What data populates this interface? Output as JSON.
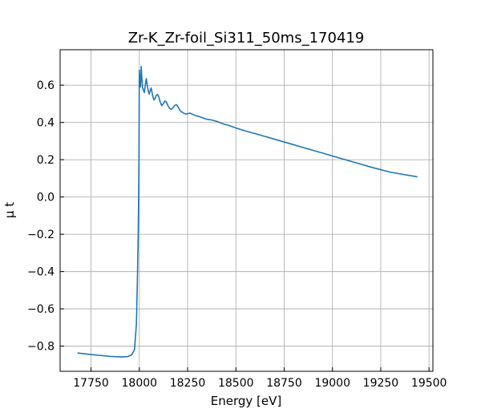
{
  "chart_data": {
    "type": "line",
    "title": "Zr-K_Zr-foil_Si311_50ms_170419",
    "xlabel": "Energy [eV]",
    "ylabel": "μ t",
    "xlim": [
      17590,
      19520
    ],
    "ylim": [
      -0.935,
      0.79
    ],
    "grid": true,
    "legend": "none",
    "x_ticks": [
      {
        "value": 17750,
        "label": "17750"
      },
      {
        "value": 18000,
        "label": "18000"
      },
      {
        "value": 18250,
        "label": "18250"
      },
      {
        "value": 18500,
        "label": "18500"
      },
      {
        "value": 18750,
        "label": "18750"
      },
      {
        "value": 19000,
        "label": "19000"
      },
      {
        "value": 19250,
        "label": "19250"
      },
      {
        "value": 19500,
        "label": "19500"
      }
    ],
    "y_ticks": [
      {
        "value": 0.6,
        "label": "0.6"
      },
      {
        "value": 0.4,
        "label": "0.4"
      },
      {
        "value": 0.2,
        "label": "0.2"
      },
      {
        "value": 0.0,
        "label": "0.0"
      },
      {
        "value": -0.2,
        "label": "−0.2"
      },
      {
        "value": -0.4,
        "label": "−0.4"
      },
      {
        "value": -0.6,
        "label": "−0.6"
      },
      {
        "value": -0.8,
        "label": "−0.8"
      }
    ],
    "series": [
      {
        "color": "#1f77b4",
        "x": [
          17680,
          17750,
          17800,
          17850,
          17900,
          17940,
          17960,
          17975,
          17985,
          17990,
          17994,
          17996,
          17998,
          18000,
          18003,
          18006,
          18010,
          18013,
          18017,
          18021,
          18026,
          18031,
          18036,
          18041,
          18046,
          18051,
          18056,
          18061,
          18066,
          18071,
          18076,
          18082,
          18088,
          18094,
          18100,
          18108,
          18116,
          18124,
          18132,
          18140,
          18148,
          18157,
          18166,
          18175,
          18184,
          18193,
          18202,
          18212,
          18222,
          18232,
          18242,
          18252,
          18262,
          18275,
          18288,
          18301,
          18314,
          18327,
          18340,
          18355,
          18370,
          18385,
          18400,
          18420,
          18440,
          18460,
          18480,
          18500,
          18525,
          18550,
          18600,
          18650,
          18700,
          18750,
          18800,
          18900,
          19000,
          19100,
          19200,
          19300,
          19440
        ],
        "y": [
          -0.837,
          -0.845,
          -0.85,
          -0.855,
          -0.858,
          -0.856,
          -0.847,
          -0.82,
          -0.68,
          -0.45,
          -0.22,
          -0.05,
          0.18,
          0.68,
          0.62,
          0.59,
          0.7,
          0.64,
          0.585,
          0.575,
          0.56,
          0.6,
          0.635,
          0.6,
          0.57,
          0.552,
          0.57,
          0.585,
          0.56,
          0.535,
          0.52,
          0.53,
          0.545,
          0.55,
          0.54,
          0.51,
          0.49,
          0.5,
          0.515,
          0.51,
          0.49,
          0.475,
          0.47,
          0.48,
          0.492,
          0.495,
          0.48,
          0.462,
          0.455,
          0.448,
          0.445,
          0.447,
          0.45,
          0.444,
          0.438,
          0.434,
          0.43,
          0.425,
          0.42,
          0.416,
          0.414,
          0.41,
          0.406,
          0.398,
          0.39,
          0.385,
          0.378,
          0.37,
          0.362,
          0.354,
          0.34,
          0.325,
          0.31,
          0.295,
          0.28,
          0.25,
          0.22,
          0.19,
          0.16,
          0.133,
          0.108
        ]
      }
    ]
  }
}
